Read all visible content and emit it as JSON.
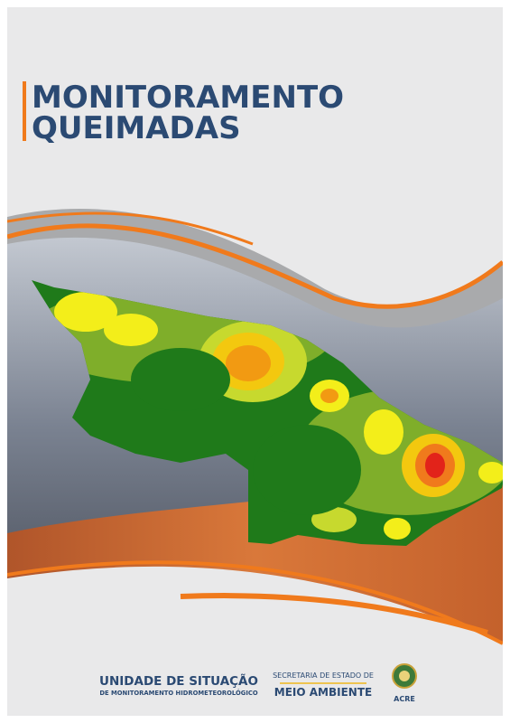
{
  "header": {
    "title": [
      "MONITORAMENTO",
      "QUEIMADAS"
    ]
  },
  "footer": {
    "unit": {
      "name": "UNIDADE DE SITUAÇÃO",
      "subtitle": "DE MONITORAMENTO HIDROMETEOROLÓGICO"
    },
    "secretariat": {
      "line1": "SECRETARIA DE ESTADO DE",
      "line2": "MEIO AMBIENTE"
    },
    "state": "ACRE"
  }
}
